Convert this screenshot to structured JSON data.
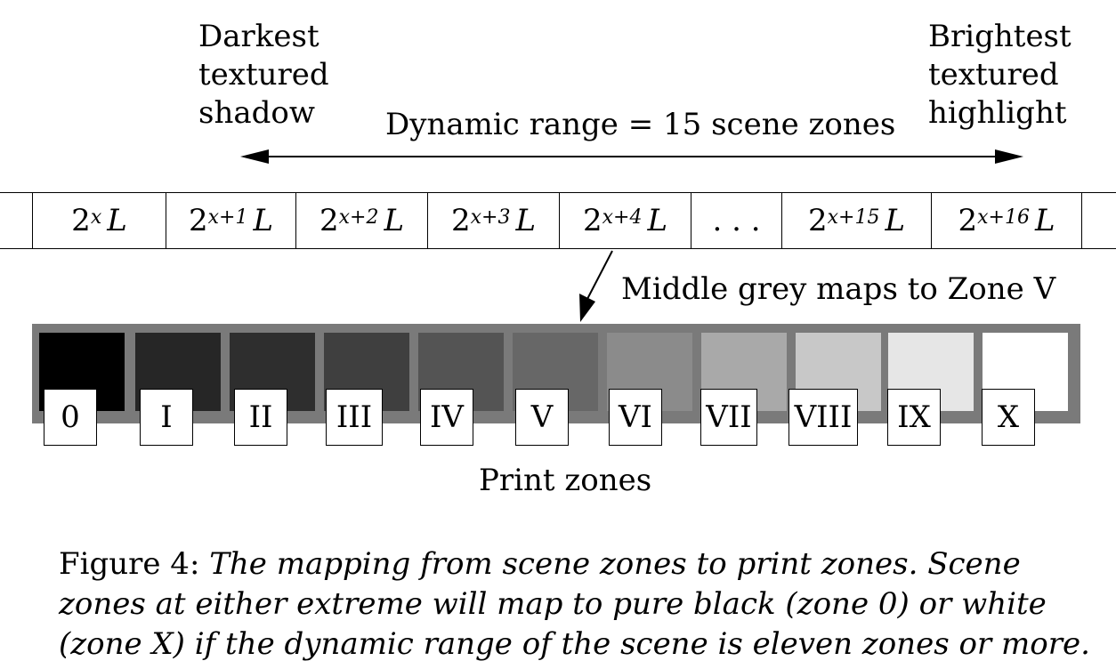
{
  "labels": {
    "darkest": "Darkest\ntextured\nshadow",
    "brightest": "Brightest\ntextured\nhighlight",
    "dynamic_range": "Dynamic range = 15 scene zones",
    "middle_grey": "Middle grey maps to Zone V",
    "print_zones": "Print zones"
  },
  "scene_zones": [
    {
      "base": "2",
      "exp": "x",
      "var": "L"
    },
    {
      "base": "2",
      "exp": "x+1",
      "var": "L"
    },
    {
      "base": "2",
      "exp": "x+2",
      "var": "L"
    },
    {
      "base": "2",
      "exp": "x+3",
      "var": "L"
    },
    {
      "base": "2",
      "exp": "x+4",
      "var": "L"
    },
    {
      "text": ". . ."
    },
    {
      "base": "2",
      "exp": "x+15",
      "var": "L"
    },
    {
      "base": "2",
      "exp": "x+16",
      "var": "L"
    }
  ],
  "print_zones": [
    "0",
    "I",
    "II",
    "III",
    "IV",
    "V",
    "VI",
    "VII",
    "VIII",
    "IX",
    "X"
  ],
  "zone_colors": [
    "#000000",
    "#262626",
    "#2e2e2e",
    "#3f3f3f",
    "#545454",
    "#676767",
    "#8b8b8b",
    "#a9a9a9",
    "#c8c8c8",
    "#e6e6e6",
    "#ffffff"
  ],
  "caption": {
    "prefix": "Figure 4:",
    "text": "The mapping from scene zones to print zones. Scene zones at either extreme will map to pure black (zone 0) or white (zone X) if the dynamic range of the scene is eleven zones or more."
  }
}
